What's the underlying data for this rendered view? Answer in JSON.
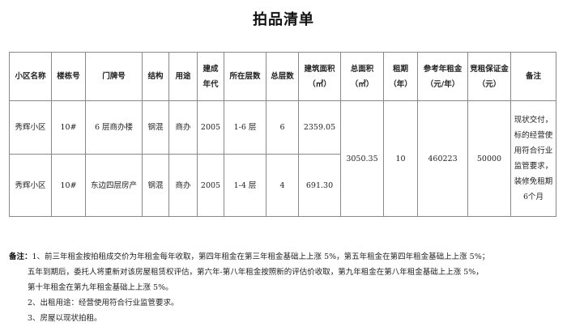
{
  "title": "拍品清单",
  "table": {
    "headers": [
      "小区名称",
      "楼栋号",
      "门牌号",
      "结构",
      "用途",
      "建成年代",
      "所在层数",
      "总层数",
      "建筑面积（㎡）",
      "总面积（㎡）",
      "租期（年）",
      "参考年租金（元/年）",
      "竞租保证金（元）",
      "备注"
    ],
    "rows": [
      {
        "community": "秀辉小区",
        "building": "10#",
        "door": "6 层商办楼",
        "structure": "钢混",
        "use": "商办",
        "year": "2005",
        "floor": "1-6 层",
        "total_floors": "6",
        "area": "2359.05"
      },
      {
        "community": "秀辉小区",
        "building": "10#",
        "door": "东边四层房产",
        "structure": "钢混",
        "use": "商办",
        "year": "2005",
        "floor": "1-4 层",
        "total_floors": "4",
        "area": "691.30"
      }
    ],
    "merged": {
      "total_area": "3050.35",
      "lease": "10",
      "rent": "460223",
      "deposit": "50000",
      "remark": "现状交付，标的经营使用符合行业监管要求，装修免租期6个月"
    }
  },
  "notes": {
    "label": "备注：",
    "lines": [
      "1、前三年租金按拍租成交价为年租金每年收取，第四年租金在第三年租金基础上上涨 5%，第五年租金在第四年租金基础上上涨 5%；",
      "五年到期后，委托人将重新对该房屋租赁权评估，第六年-第八年租金按照新的评估价收取，第九年租金在第八年租金基础上上涨 5%，",
      "第十年租金在第九年租金基础上上涨 5%。",
      "2、出租用途：经营使用符合行业监管要求。",
      "3、房屋以现状拍租。"
    ]
  }
}
